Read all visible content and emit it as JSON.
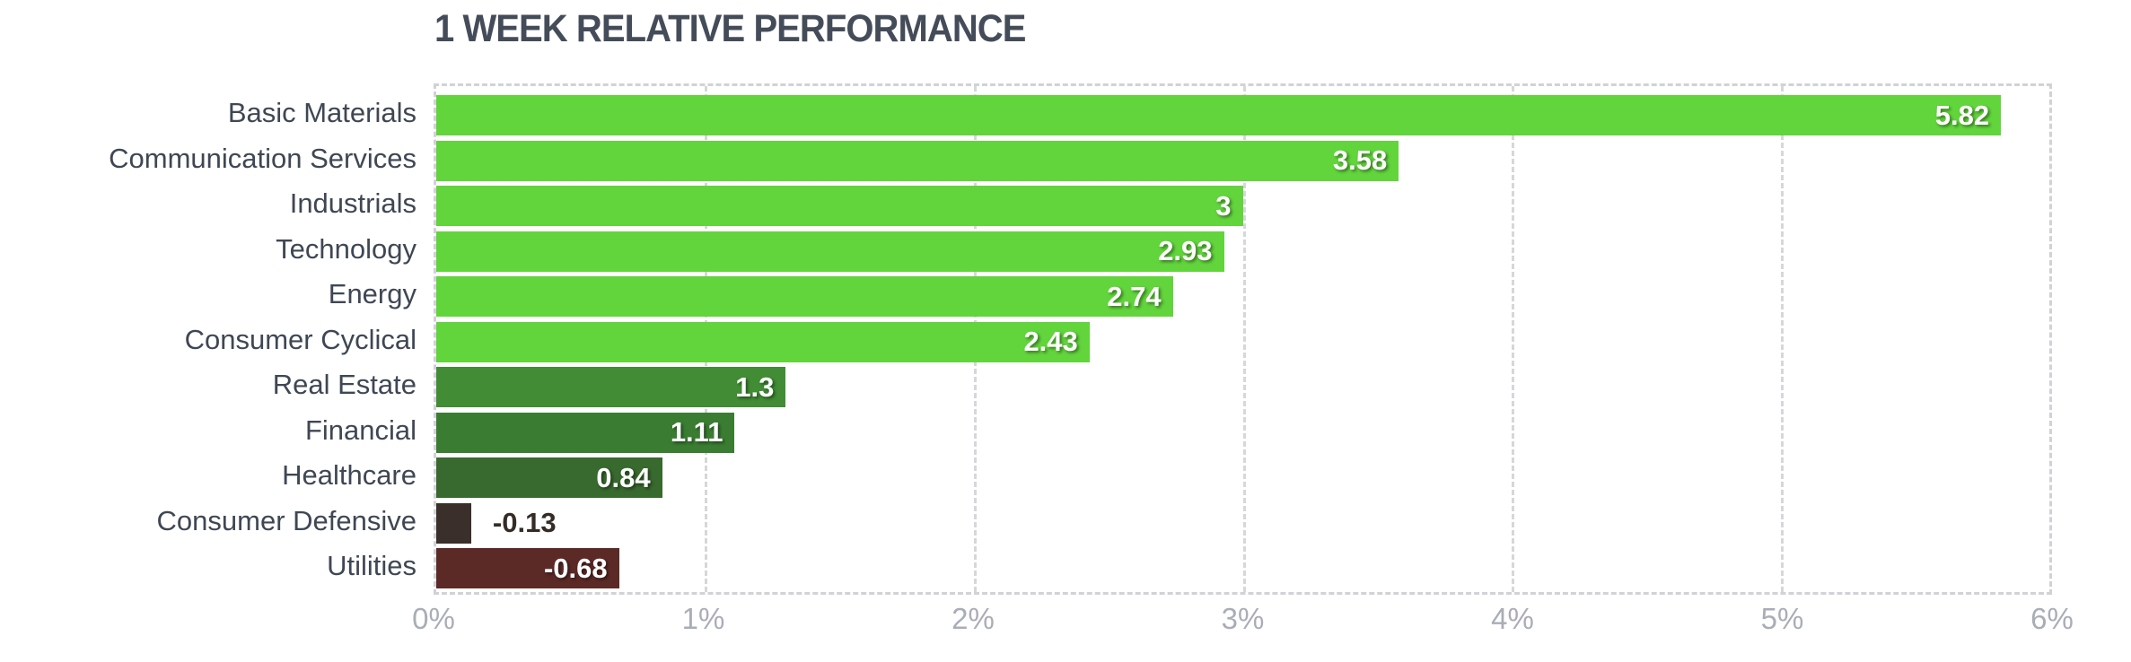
{
  "title": "1 WEEK RELATIVE PERFORMANCE",
  "chart_data": {
    "type": "bar",
    "orientation": "horizontal",
    "title": "1 WEEK RELATIVE PERFORMANCE",
    "categories": [
      "Basic Materials",
      "Communication Services",
      "Industrials",
      "Technology",
      "Energy",
      "Consumer Cyclical",
      "Real Estate",
      "Financial",
      "Healthcare",
      "Consumer Defensive",
      "Utilities"
    ],
    "values": [
      5.82,
      3.58,
      3,
      2.93,
      2.74,
      2.43,
      1.3,
      1.11,
      0.84,
      -0.13,
      -0.68
    ],
    "value_labels": [
      "5.82",
      "3.58",
      "3",
      "2.93",
      "2.74",
      "2.43",
      "1.3",
      "1.11",
      "0.84",
      "-0.13",
      "-0.68"
    ],
    "bar_colors": [
      "#62d43c",
      "#62d43c",
      "#62d43c",
      "#62d43c",
      "#62d43c",
      "#62d43c",
      "#418c34",
      "#3a7d32",
      "#38692e",
      "#3a2f2b",
      "#5c2a26"
    ],
    "x_ticks": [
      "0%",
      "1%",
      "2%",
      "3%",
      "4%",
      "5%",
      "6%"
    ],
    "xlim": [
      0,
      6
    ],
    "ylabel": "",
    "xlabel": "",
    "grid": "vertical-dashed",
    "legend": "none",
    "style_colors": {
      "title_text": "#454c59",
      "category_text": "#3f4754",
      "axis_tick_text": "#a9adb6",
      "grid_border": "#d1d2d6",
      "value_text_inside": "#ffffff",
      "value_text_outside": "#352c28",
      "background": "#ffffff"
    }
  }
}
